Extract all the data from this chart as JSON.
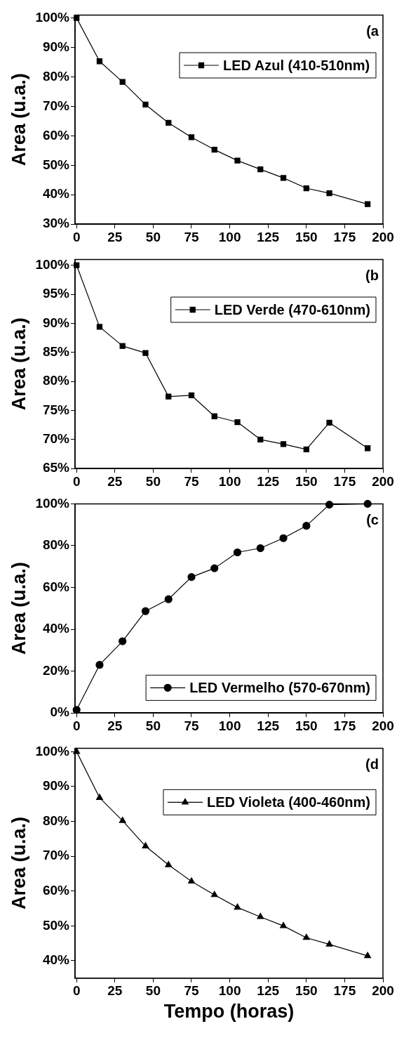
{
  "chart_data": [
    {
      "type": "line",
      "ylabel": "Area (u.a.)",
      "annotations": [
        "(a"
      ],
      "x": [
        0,
        15,
        30,
        45,
        60,
        75,
        90,
        105,
        120,
        135,
        150,
        165,
        190
      ],
      "xlim": [
        -1,
        200
      ],
      "xticks": [
        0,
        25,
        50,
        75,
        100,
        125,
        150,
        175,
        200
      ],
      "ylim": [
        30,
        101
      ],
      "yticks": [
        {
          "value": 30,
          "label": "30%"
        },
        {
          "value": 40,
          "label": "40%"
        },
        {
          "value": 50,
          "label": "50%"
        },
        {
          "value": 60,
          "label": "60%"
        },
        {
          "value": 70,
          "label": "70%"
        },
        {
          "value": 80,
          "label": "80%"
        },
        {
          "value": 90,
          "label": "90%"
        },
        {
          "value": 100,
          "label": "100%"
        }
      ],
      "grid": false,
      "legend": "top right",
      "line_style": "solid",
      "series": [
        {
          "name": "LED Azul (410-510nm)",
          "color": "#000000",
          "marker": "square",
          "values": [
            100,
            85.3,
            78.3,
            70.6,
            64.4,
            59.5,
            55.3,
            51.6,
            48.6,
            45.7,
            42.2,
            40.5,
            36.8
          ]
        }
      ]
    },
    {
      "type": "line",
      "ylabel": "Area (u.a.)",
      "annotations": [
        "(b"
      ],
      "x": [
        0,
        15,
        30,
        45,
        60,
        75,
        90,
        105,
        120,
        135,
        150,
        165,
        190
      ],
      "xlim": [
        -1,
        200
      ],
      "xticks": [
        0,
        25,
        50,
        75,
        100,
        125,
        150,
        175,
        200
      ],
      "ylim": [
        65,
        101
      ],
      "yticks": [
        {
          "value": 65,
          "label": "65%"
        },
        {
          "value": 70,
          "label": "70%"
        },
        {
          "value": 75,
          "label": "75%"
        },
        {
          "value": 80,
          "label": "80%"
        },
        {
          "value": 85,
          "label": "85%"
        },
        {
          "value": 90,
          "label": "90%"
        },
        {
          "value": 95,
          "label": "95%"
        },
        {
          "value": 100,
          "label": "100%"
        }
      ],
      "grid": false,
      "legend": "top right",
      "line_style": "solid",
      "series": [
        {
          "name": "LED Verde (470-610nm)",
          "color": "#000000",
          "marker": "square",
          "values": [
            100,
            89.4,
            86.1,
            84.9,
            77.4,
            77.6,
            74.0,
            73.0,
            70.0,
            69.2,
            68.3,
            72.9,
            68.5
          ]
        }
      ]
    },
    {
      "type": "line",
      "ylabel": "Area (u.a.)",
      "annotations": [
        "(c"
      ],
      "x": [
        0,
        15,
        30,
        45,
        60,
        75,
        90,
        105,
        120,
        135,
        150,
        165,
        190
      ],
      "xlim": [
        -1,
        200
      ],
      "xticks": [
        0,
        25,
        50,
        75,
        100,
        125,
        150,
        175,
        200
      ],
      "ylim": [
        0,
        100
      ],
      "yticks": [
        {
          "value": 0,
          "label": "0%"
        },
        {
          "value": 20,
          "label": "20%"
        },
        {
          "value": 40,
          "label": "40%"
        },
        {
          "value": 60,
          "label": "60%"
        },
        {
          "value": 80,
          "label": "80%"
        },
        {
          "value": 100,
          "label": "100%"
        }
      ],
      "grid": false,
      "legend": "bottom right",
      "line_style": "solid",
      "series": [
        {
          "name": "LED Vermelho (570-670nm)",
          "color": "#000000",
          "marker": "circle",
          "values": [
            1.5,
            23.0,
            34.3,
            48.7,
            54.4,
            65.0,
            69.2,
            76.8,
            78.8,
            83.6,
            89.5,
            99.6,
            100
          ]
        }
      ]
    },
    {
      "type": "line",
      "xlabel": "Tempo (horas)",
      "ylabel": "Area (u.a.)",
      "annotations": [
        "(d"
      ],
      "x": [
        0,
        15,
        30,
        45,
        60,
        75,
        90,
        105,
        120,
        135,
        150,
        165,
        190
      ],
      "xlim": [
        -1,
        200
      ],
      "xticks": [
        0,
        25,
        50,
        75,
        100,
        125,
        150,
        175,
        200
      ],
      "ylim": [
        35,
        101
      ],
      "yticks": [
        {
          "value": 40,
          "label": "40%"
        },
        {
          "value": 50,
          "label": "50%"
        },
        {
          "value": 60,
          "label": "60%"
        },
        {
          "value": 70,
          "label": "70%"
        },
        {
          "value": 80,
          "label": "80%"
        },
        {
          "value": 90,
          "label": "90%"
        },
        {
          "value": 100,
          "label": "100%"
        }
      ],
      "grid": false,
      "legend": "top right",
      "line_style": "solid",
      "series": [
        {
          "name": "LED Violeta (400-460nm)",
          "color": "#000000",
          "marker": "triangle",
          "values": [
            100,
            86.8,
            80.2,
            72.9,
            67.5,
            62.8,
            58.9,
            55.3,
            52.6,
            50.0,
            46.6,
            44.7,
            41.4
          ]
        }
      ]
    }
  ]
}
